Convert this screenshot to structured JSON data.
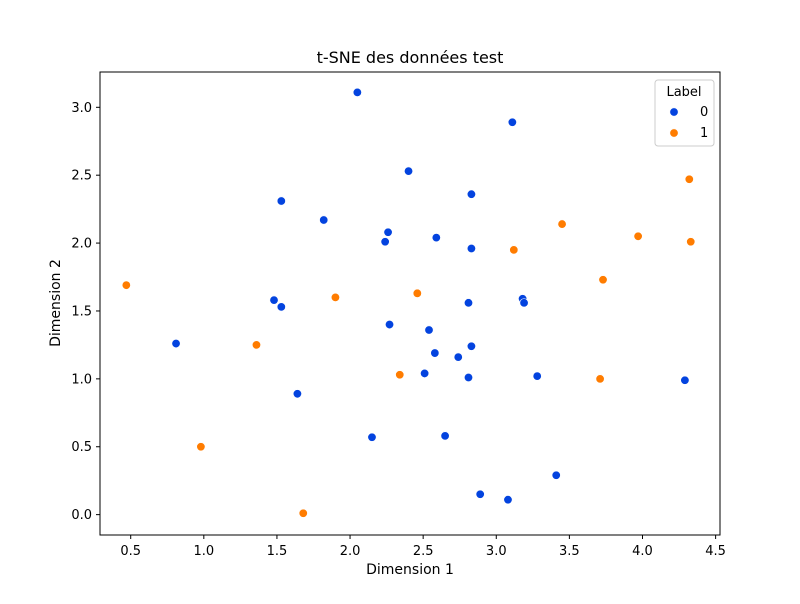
{
  "chart_data": {
    "type": "scatter",
    "title": "t-SNE des données test",
    "xlabel": "Dimension 1",
    "ylabel": "Dimension 2",
    "xlim": [
      0.29,
      4.53
    ],
    "ylim": [
      -0.15,
      3.26
    ],
    "xticks": [
      0.5,
      1.0,
      1.5,
      2.0,
      2.5,
      3.0,
      3.5,
      4.0,
      4.5
    ],
    "xtick_labels": [
      "0.5",
      "1.0",
      "1.5",
      "2.0",
      "2.5",
      "3.0",
      "3.5",
      "4.0",
      "4.5"
    ],
    "yticks": [
      0.0,
      0.5,
      1.0,
      1.5,
      2.0,
      2.5,
      3.0
    ],
    "ytick_labels": [
      "0.0",
      "0.5",
      "1.0",
      "1.5",
      "2.0",
      "2.5",
      "3.0"
    ],
    "grid": false,
    "legend": {
      "title": "Label",
      "placement": "top-right",
      "entries": [
        "0",
        "1"
      ]
    },
    "series": [
      {
        "name": "0",
        "color": "#0343df",
        "points": [
          [
            2.05,
            3.11
          ],
          [
            3.11,
            2.89
          ],
          [
            2.4,
            2.53
          ],
          [
            1.53,
            2.31
          ],
          [
            2.83,
            2.36
          ],
          [
            1.82,
            2.17
          ],
          [
            2.26,
            2.08
          ],
          [
            2.24,
            2.01
          ],
          [
            2.59,
            2.04
          ],
          [
            2.83,
            1.96
          ],
          [
            1.48,
            1.58
          ],
          [
            1.53,
            1.53
          ],
          [
            2.81,
            1.56
          ],
          [
            3.18,
            1.59
          ],
          [
            3.19,
            1.56
          ],
          [
            2.27,
            1.4
          ],
          [
            2.54,
            1.36
          ],
          [
            0.81,
            1.26
          ],
          [
            2.83,
            1.24
          ],
          [
            2.58,
            1.19
          ],
          [
            2.74,
            1.16
          ],
          [
            2.51,
            1.04
          ],
          [
            2.81,
            1.01
          ],
          [
            3.28,
            1.02
          ],
          [
            4.29,
            0.99
          ],
          [
            1.64,
            0.89
          ],
          [
            2.15,
            0.57
          ],
          [
            2.65,
            0.58
          ],
          [
            3.41,
            0.29
          ],
          [
            2.89,
            0.15
          ],
          [
            3.08,
            0.11
          ]
        ]
      },
      {
        "name": "1",
        "color": "#ff7c00",
        "points": [
          [
            4.32,
            2.47
          ],
          [
            3.45,
            2.14
          ],
          [
            3.97,
            2.05
          ],
          [
            3.12,
            1.95
          ],
          [
            4.33,
            2.01
          ],
          [
            3.73,
            1.73
          ],
          [
            0.47,
            1.69
          ],
          [
            1.9,
            1.6
          ],
          [
            2.46,
            1.63
          ],
          [
            1.36,
            1.25
          ],
          [
            2.34,
            1.03
          ],
          [
            3.71,
            1.0
          ],
          [
            0.98,
            0.5
          ],
          [
            1.68,
            0.01
          ]
        ]
      }
    ]
  }
}
